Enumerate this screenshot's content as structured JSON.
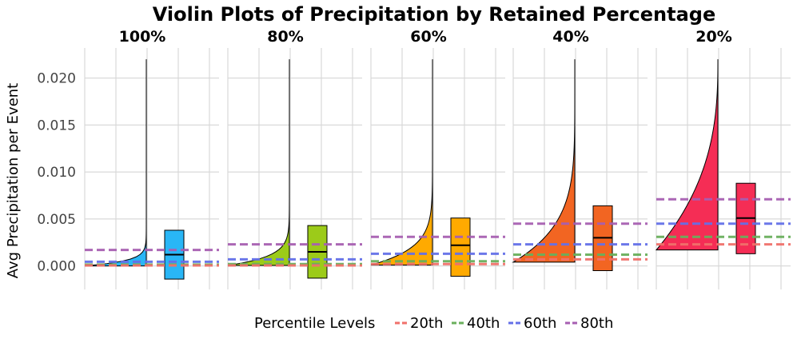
{
  "chart_data": {
    "type": "violin",
    "title": "Violin Plots of Precipitation by Retained Percentage",
    "ylabel": "Avg Precipitation per Event",
    "xlabel": "",
    "ylim": [
      -0.0025,
      0.0232
    ],
    "yticks": [
      0.0,
      0.005,
      0.01,
      0.015,
      0.02
    ],
    "ytick_labels": [
      "0.000",
      "0.005",
      "0.010",
      "0.015",
      "0.020"
    ],
    "grid": true,
    "legend": {
      "title": "Percentile Levels",
      "position": "bottom",
      "entries": [
        {
          "label": "20th",
          "color": "#f0716b"
        },
        {
          "label": "40th",
          "color": "#6aaf5c"
        },
        {
          "label": "60th",
          "color": "#6470e8"
        },
        {
          "label": "80th",
          "color": "#a75fb2"
        }
      ]
    },
    "panels": [
      {
        "label": "100%",
        "color": "#29b6f6",
        "violin_min": 0.0,
        "violin_max": 0.022,
        "shape_exp": 40,
        "box": {
          "low": -0.0014,
          "median": 0.0012,
          "high": 0.0038
        },
        "percentiles": {
          "20th": 5e-05,
          "40th": 0.00015,
          "60th": 0.00045,
          "80th": 0.0017
        }
      },
      {
        "label": "80%",
        "color": "#9ccb19",
        "violin_min": 5e-05,
        "violin_max": 0.022,
        "shape_exp": 22,
        "box": {
          "low": -0.0013,
          "median": 0.0015,
          "high": 0.0043
        },
        "percentiles": {
          "20th": 5e-05,
          "40th": 0.0002,
          "60th": 0.0007,
          "80th": 0.0023
        }
      },
      {
        "label": "60%",
        "color": "#ffaa00",
        "violin_min": 0.0001,
        "violin_max": 0.022,
        "shape_exp": 12,
        "box": {
          "low": -0.0011,
          "median": 0.0022,
          "high": 0.0051
        },
        "percentiles": {
          "20th": 0.0002,
          "40th": 0.0005,
          "60th": 0.0013,
          "80th": 0.0031
        }
      },
      {
        "label": "40%",
        "color": "#f26522",
        "violin_min": 0.0004,
        "violin_max": 0.022,
        "shape_exp": 5.5,
        "box": {
          "low": -0.0005,
          "median": 0.003,
          "high": 0.0064
        },
        "percentiles": {
          "20th": 0.0007,
          "40th": 0.0012,
          "60th": 0.0023,
          "80th": 0.0045
        }
      },
      {
        "label": "20%",
        "color": "#f52d55",
        "violin_min": 0.0017,
        "violin_max": 0.022,
        "shape_exp": 2.6,
        "box": {
          "low": 0.0013,
          "median": 0.0051,
          "high": 0.0088
        },
        "percentiles": {
          "20th": 0.0023,
          "40th": 0.0031,
          "60th": 0.0045,
          "80th": 0.0071
        }
      }
    ]
  }
}
